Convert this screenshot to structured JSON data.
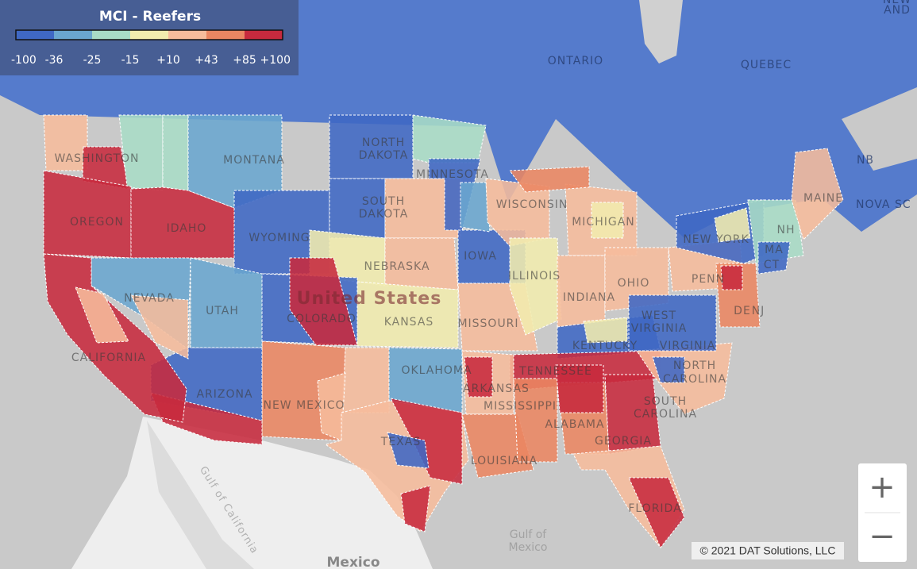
{
  "legend": {
    "title": "MCI - Reefers",
    "ticks": [
      "-100",
      "-36",
      "-25",
      "-15",
      "+10",
      "+43",
      "+85",
      "+100"
    ],
    "colors": [
      "#3f68c4",
      "#6aa6cf",
      "#a9dcc6",
      "#f1ecae",
      "#f6bc9c",
      "#ea8662",
      "#c72a3e"
    ]
  },
  "labels": {
    "ontario": "ONTARIO",
    "quebec": "QUEBEC",
    "new": "NEW",
    "and": "AND",
    "nb": "NB",
    "nova": "NOVA SC",
    "washington": "WASHINGTON",
    "montana": "MONTANA",
    "north_dakota": [
      "NORTH",
      "DAKOTA"
    ],
    "minnesota": "MINNESOTA",
    "south_dakota": [
      "SOUTH",
      "DAKOTA"
    ],
    "wisconsin": "WISCONSIN",
    "michigan": "MICHIGAN",
    "oregon": "OREGON",
    "idaho": "IDAHO",
    "wyoming": "WYOMING",
    "iowa": "IOWA",
    "new_york": "NEW YORK",
    "maine": "MAINE",
    "nh": "NH",
    "ma": "MA",
    "ct": "CT",
    "nebraska": "NEBRASKA",
    "illinois": "ILLINOIS",
    "ohio": "OHIO",
    "penn": "PENN",
    "nevada": "NEVADA",
    "united_states": "United States",
    "indiana": "INDIANA",
    "de": "DE",
    "nj": "NJ",
    "utah": "UTAH",
    "colorado": "COLORADO",
    "kansas": "KANSAS",
    "missouri": "MISSOURI",
    "west_virginia": [
      "WEST",
      "VIRGINIA"
    ],
    "kentucky": "KENTUCKY",
    "virginia": "VIRGINIA",
    "california": "CALIFORNIA",
    "north_carolina": [
      "NORTH",
      "CAROLINA"
    ],
    "oklahoma": "OKLAHOMA",
    "tennessee": "TENNESSEE",
    "arkansas": "ARKANSAS",
    "arizona": "ARIZONA",
    "south_carolina": [
      "SOUTH",
      "CAROLINA"
    ],
    "new_mexico": "NEW MEXICO",
    "mississippi": "MISSISSIPPI",
    "alabama": "ALABAMA",
    "georgia": "GEORGIA",
    "texas": "TEXAS",
    "louisiana": "LOUISIANA",
    "florida": "FLORIDA",
    "gulf_of_california": "Gulf of California",
    "gulf_of_mexico": [
      "Gulf of",
      "Mexico"
    ],
    "mexico": "Mexico"
  },
  "copyright": "© 2021 DAT Solutions, LLC",
  "zoom": {
    "in": "+",
    "out": "−"
  }
}
